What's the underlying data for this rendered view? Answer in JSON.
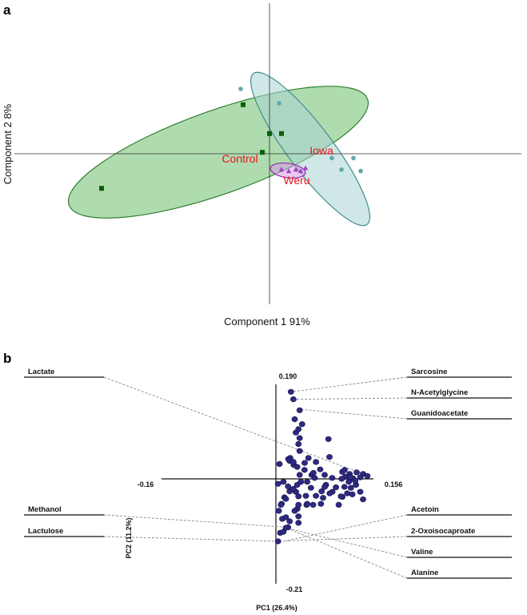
{
  "panels": {
    "a": "a",
    "b": "b"
  },
  "chart_data": [
    {
      "type": "scatter",
      "xlabel": "Component 1 91%",
      "ylabel": "Component 2 8%",
      "xlim": [
        -1.0,
        1.0
      ],
      "ylim": [
        -1.0,
        1.0
      ],
      "grid": false,
      "groups": [
        {
          "name": "Control",
          "marker": "square",
          "color": "#0b5e0b",
          "ellipse_fill": "#6dbf6d",
          "ellipse_stroke": "#2e7d32",
          "points": [
            [
              -0.7,
              -0.24
            ],
            [
              -0.11,
              0.34
            ],
            [
              0.0,
              0.14
            ],
            [
              0.05,
              0.14
            ],
            [
              -0.03,
              0.01
            ]
          ]
        },
        {
          "name": "Iowa",
          "marker": "circle",
          "color": "#5fa8a8",
          "ellipse_fill": "#a9d4d4",
          "ellipse_stroke": "#3f8f8f",
          "points": [
            [
              -0.12,
              0.45
            ],
            [
              0.04,
              0.35
            ],
            [
              0.26,
              -0.03
            ],
            [
              0.3,
              -0.11
            ],
            [
              0.35,
              -0.03
            ],
            [
              0.38,
              -0.12
            ]
          ]
        },
        {
          "name": "Weru",
          "marker": "triangle",
          "color": "#a040c0",
          "ellipse_fill": "#d79ae6",
          "ellipse_stroke": "#8e2aa8",
          "points": [
            [
              0.05,
              -0.11
            ],
            [
              0.08,
              -0.12
            ],
            [
              0.11,
              -0.11
            ],
            [
              0.13,
              -0.12
            ],
            [
              0.15,
              -0.1
            ]
          ]
        }
      ]
    },
    {
      "type": "scatter",
      "xlabel": "PC1 (26.4%)",
      "ylabel": "PC2 (11.2%)",
      "xlim": [
        -0.16,
        0.156
      ],
      "ylim": [
        -0.21,
        0.19
      ],
      "tick_labels": {
        "x_min": "-0.16",
        "x_max": "0.156",
        "y_max": "0.190",
        "y_min": "-0.21"
      },
      "series": [
        {
          "color": "#2e2a80",
          "points": [
            [
              -0.122,
              0.01
            ],
            [
              -0.118,
              0.003
            ],
            [
              -0.113,
              0.013
            ],
            [
              -0.108,
              0.001
            ],
            [
              -0.103,
              0.01
            ],
            [
              -0.097,
              0.004
            ],
            [
              -0.093,
              0.014
            ],
            [
              -0.102,
              -0.006
            ],
            [
              -0.112,
              -0.012
            ],
            [
              -0.096,
              -0.016
            ],
            [
              -0.118,
              -0.026
            ],
            [
              -0.107,
              -0.031
            ],
            [
              -0.122,
              -0.041
            ],
            [
              -0.093,
              -0.036
            ],
            [
              -0.084,
              -0.017
            ],
            [
              -0.079,
              -0.026
            ],
            [
              -0.088,
              -0.052
            ],
            [
              -0.07,
              -0.012
            ],
            [
              -0.066,
              -0.038
            ],
            [
              -0.064,
              -0.025
            ],
            [
              -0.056,
              -0.034
            ],
            [
              -0.052,
              -0.052
            ],
            [
              -0.043,
              -0.052
            ],
            [
              -0.075,
              0.044
            ],
            [
              -0.062,
              0.019
            ],
            [
              -0.05,
              0.008
            ],
            [
              -0.04,
              0.018
            ],
            [
              -0.025,
              0.028
            ],
            [
              -0.02,
              0.042
            ],
            [
              -0.005,
              0.03
            ],
            [
              -0.035,
              -0.006
            ],
            [
              -0.017,
              -0.015
            ],
            [
              -0.028,
              -0.026
            ],
            [
              -0.012,
              -0.037
            ],
            [
              -0.03,
              -0.06
            ],
            [
              -0.008,
              -0.05
            ],
            [
              -0.004,
              -0.064
            ],
            [
              -0.009,
              -0.08
            ],
            [
              -0.017,
              -0.097
            ],
            [
              -0.006,
              -0.108
            ],
            [
              -0.003,
              -0.125
            ],
            [
              0.008,
              -0.052
            ],
            [
              0.016,
              -0.04
            ],
            [
              0.022,
              -0.025
            ],
            [
              0.028,
              -0.02
            ],
            [
              0.034,
              -0.012
            ],
            [
              0.038,
              0.008
            ],
            [
              0.034,
              0.024
            ],
            [
              0.02,
              0.04
            ],
            [
              0.038,
              0.056
            ],
            [
              0.046,
              0.032
            ],
            [
              0.012,
              -0.006
            ],
            [
              0.036,
              -0.035
            ],
            [
              0.05,
              -0.006
            ],
            [
              0.056,
              -0.018
            ],
            [
              0.062,
              0.002
            ],
            [
              0.048,
              -0.034
            ],
            [
              0.036,
              -0.052
            ],
            [
              0.03,
              -0.064
            ],
            [
              0.036,
              -0.075
            ],
            [
              0.05,
              -0.05
            ],
            [
              0.016,
              -0.077
            ],
            [
              0.022,
              -0.085
            ],
            [
              0.036,
              -0.088
            ],
            [
              0.016,
              -0.098
            ],
            [
              0.012,
              -0.106
            ],
            [
              0.036,
              0.07
            ],
            [
              0.038,
              0.082
            ],
            [
              0.032,
              0.093
            ],
            [
              0.036,
              0.1
            ],
            [
              0.03,
              0.12
            ],
            [
              0.038,
              0.138
            ],
            [
              0.024,
              0.175
            ],
            [
              0.028,
              0.16
            ],
            [
              0.042,
              0.11
            ],
            [
              0.052,
              0.042
            ],
            [
              0.064,
              0.034
            ],
            [
              0.078,
              0.008
            ],
            [
              0.09,
              0.002
            ],
            [
              0.078,
              -0.016
            ],
            [
              0.086,
              -0.029
            ],
            [
              0.104,
              -0.035
            ],
            [
              0.114,
              -0.029
            ],
            [
              0.06,
              0.012
            ],
            [
              0.072,
              -0.05
            ],
            [
              0.084,
              0.08
            ],
            [
              0.022,
              0.036
            ],
            [
              -0.003,
              -0.01
            ],
            [
              0.11,
              0.018
            ],
            [
              -0.092,
              0.0
            ],
            [
              -0.128,
              0.006
            ],
            [
              0.12,
              -0.018
            ],
            [
              -0.104,
              0.004
            ],
            [
              -0.111,
              -0.004
            ],
            [
              0.028,
              0.034
            ]
          ]
        }
      ],
      "annotations": [
        {
          "label": "Lactate",
          "side": "left",
          "point": [
            -0.122,
            0.01
          ]
        },
        {
          "label": "Methanol",
          "side": "left",
          "point": [
            -0.017,
            -0.097
          ]
        },
        {
          "label": "Lactulose",
          "side": "left",
          "point": [
            -0.006,
            -0.125
          ]
        },
        {
          "label": "Sarcosine",
          "side": "right",
          "point": [
            0.024,
            0.175
          ]
        },
        {
          "label": "N-Acetylglycine",
          "side": "right",
          "point": [
            0.028,
            0.16
          ]
        },
        {
          "label": "Guanidoacetate",
          "side": "right",
          "point": [
            0.036,
            0.14
          ]
        },
        {
          "label": "Acetoin",
          "side": "right",
          "point": [
            0.012,
            -0.125
          ]
        },
        {
          "label": "2-Oxoisocaproate",
          "side": "right",
          "point": [
            0.016,
            -0.124
          ]
        },
        {
          "label": "Valine",
          "side": "right",
          "point": [
            0.022,
            -0.1
          ]
        },
        {
          "label": "Alanine",
          "side": "right",
          "point": [
            0.016,
            -0.098
          ]
        }
      ]
    }
  ]
}
